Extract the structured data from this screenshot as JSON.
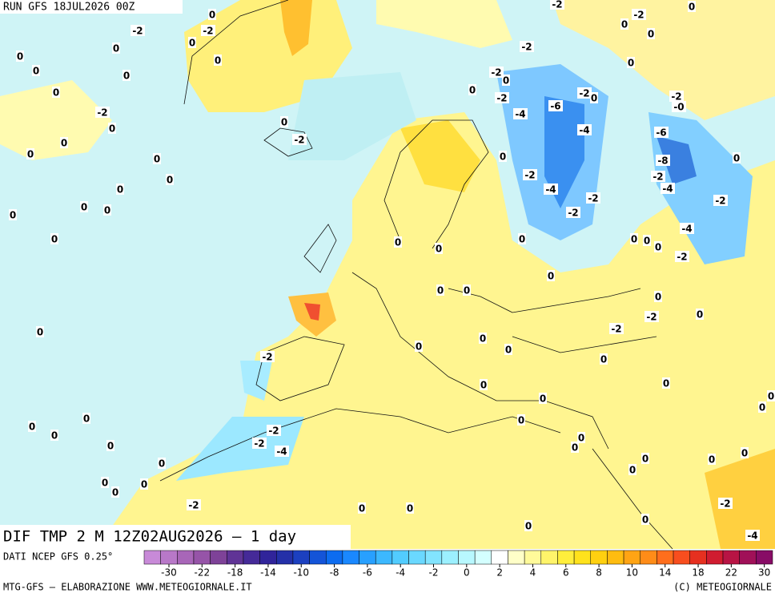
{
  "header": {
    "run": "RUN GFS 18JUL2026 00Z",
    "title": "DIF TMP 2 M 12Z02AUG2026 — 1 day"
  },
  "footer": {
    "source": "DATI NCEP GFS 0.25°",
    "credit": "MTG-GFS — ELABORAZIONE WWW.METEOGIORNALE.IT",
    "copyright": "(C) METEOGIORNALE"
  },
  "colorbar": {
    "ticks": [
      -30,
      -22,
      -18,
      -14,
      -10,
      -8,
      -6,
      -4,
      -2,
      0,
      2,
      4,
      6,
      8,
      10,
      14,
      18,
      22,
      30
    ],
    "colors": [
      "#c88ad8",
      "#b878c8",
      "#a866b8",
      "#9654a8",
      "#7e4298",
      "#603496",
      "#452a98",
      "#30249a",
      "#2430a8",
      "#1c40c0",
      "#1454d8",
      "#0c6cf0",
      "#1a88ff",
      "#28a0ff",
      "#3cb8ff",
      "#52ccff",
      "#6ad8ff",
      "#82e4ff",
      "#9cf0ff",
      "#b8f8ff",
      "#d4ffff",
      "#ffffff",
      "#ffffc8",
      "#fffa9a",
      "#fff46a",
      "#ffee3c",
      "#ffe21c",
      "#ffd010",
      "#ffbc10",
      "#ffa414",
      "#ff8c18",
      "#ff6e1c",
      "#f84e1e",
      "#e63020",
      "#d01c30",
      "#b81444",
      "#a01058",
      "#880c66"
    ]
  },
  "map_labels": [
    "0",
    "-2",
    "-2",
    "0",
    "0",
    "0",
    "0",
    "0",
    "0",
    "0",
    "-2",
    "0",
    "0",
    "0",
    "0",
    "0",
    "0",
    "0",
    "0",
    "0",
    "0",
    "0",
    "-2",
    "-2",
    "-2",
    "0",
    "0",
    "0",
    "-2",
    "0",
    "-2",
    "0",
    "0",
    "-2",
    "-2",
    "0",
    "-6",
    "-4",
    "-2",
    "-0",
    "-4",
    "-6",
    "0",
    "-8",
    "0",
    "-2",
    "-2",
    "-4",
    "-4",
    "-2",
    "-2",
    "-2",
    "-4",
    "0",
    "0",
    "0",
    "0",
    "0",
    "0",
    "-2",
    "0",
    "0",
    "0",
    "0",
    "0",
    "-2",
    "-2",
    "0",
    "0",
    "0",
    "0",
    "-2",
    "0",
    "0",
    "0",
    "0",
    "0",
    "0",
    "0",
    "0",
    "-2",
    "0",
    "0",
    "0",
    "-2",
    "-4",
    "0",
    "0",
    "0",
    "0",
    "0",
    "0",
    "0",
    "0",
    "0",
    "0",
    "-2",
    "0",
    "0",
    "-2",
    "0",
    "0",
    "-4"
  ]
}
